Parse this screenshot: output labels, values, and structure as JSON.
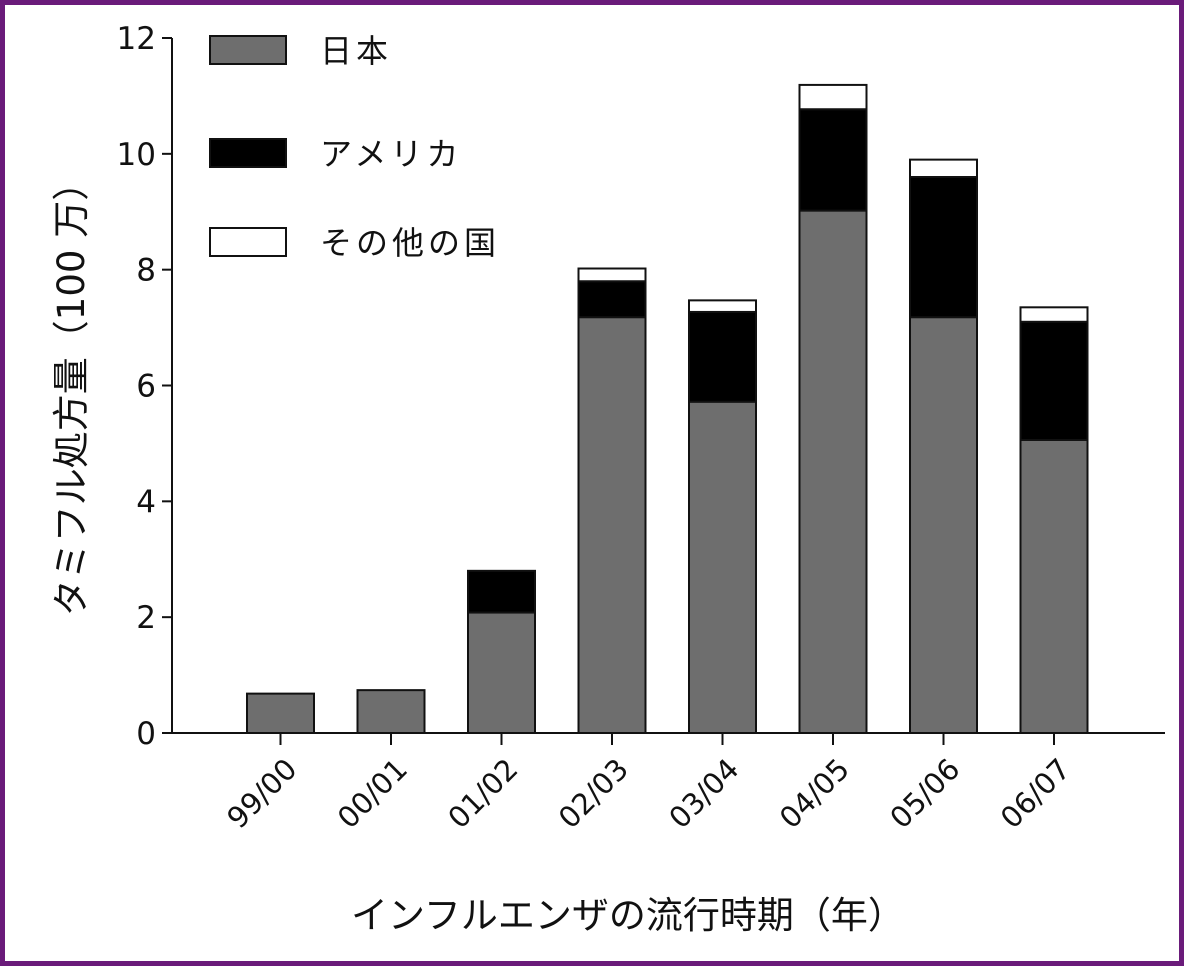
{
  "chart_data": {
    "type": "bar",
    "stacked": true,
    "categories": [
      "99/00",
      "00/01",
      "01/02",
      "02/03",
      "03/04",
      "04/05",
      "05/06",
      "06/07"
    ],
    "series": [
      {
        "name": "日本",
        "color": "#6e6e6e",
        "values": [
          0.68,
          0.74,
          2.08,
          7.18,
          5.72,
          9.02,
          7.18,
          5.06
        ]
      },
      {
        "name": "アメリカ",
        "color": "#000000",
        "values": [
          0,
          0,
          0.72,
          0.62,
          1.55,
          1.75,
          2.42,
          2.04
        ]
      },
      {
        "name": "その他の国",
        "color": "#ffffff",
        "values": [
          0,
          0,
          0,
          0.22,
          0.2,
          0.42,
          0.3,
          0.25
        ]
      }
    ],
    "xlabel": "インフルエンザの流行時期（年）",
    "ylabel": "タミフル処方量（100 万）",
    "ylim": [
      0,
      12
    ],
    "yticks": [
      0,
      2,
      4,
      6,
      8,
      10,
      12
    ],
    "grid": false,
    "legend_position": "top-left"
  }
}
